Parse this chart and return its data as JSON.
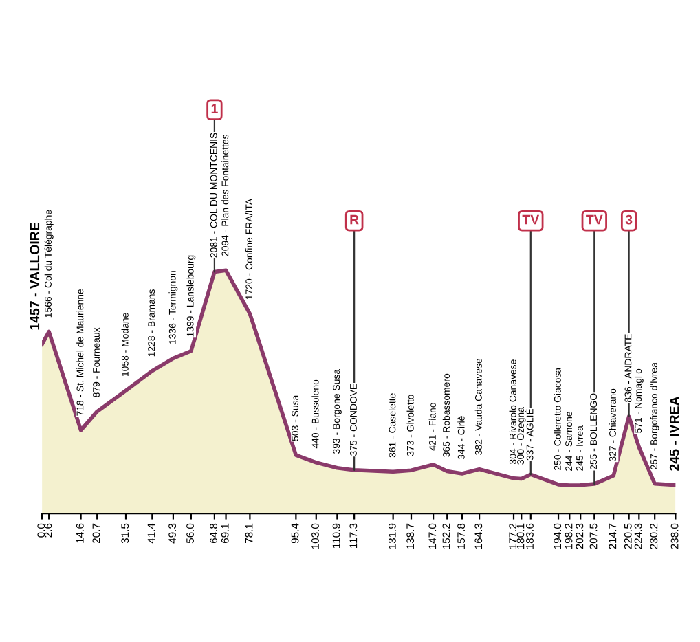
{
  "chart_data": {
    "type": "area",
    "color": "#8a3a6a",
    "x": [
      0.0,
      2.6,
      14.6,
      20.7,
      31.5,
      41.4,
      49.3,
      56.0,
      64.8,
      69.1,
      78.1,
      95.4,
      103.0,
      110.9,
      117.3,
      131.9,
      138.7,
      147.0,
      152.2,
      157.8,
      164.3,
      177.2,
      180.1,
      183.6,
      194.0,
      198.2,
      202.3,
      207.5,
      214.7,
      220.5,
      224.3,
      230.2,
      238.0
    ],
    "values": [
      1457,
      1566,
      718,
      879,
      1058,
      1228,
      1336,
      1399,
      2081,
      2094,
      1720,
      503,
      440,
      393,
      375,
      361,
      373,
      421,
      365,
      344,
      382,
      304,
      300,
      337,
      250,
      244,
      245,
      255,
      327,
      836,
      571,
      257,
      245
    ],
    "value_labels": [
      "1457 - VALLOIRE",
      "1566 - Col du Télégraphe",
      "718 - St. Michel de Maurienne",
      "879 - Fourneaux",
      "1058 - Modane",
      "1228 - Bramans",
      "1336 - Termignon",
      "1399 - Lanslebourg",
      "2081 - COL DU MONTCENIS",
      "2094 - Plan des Fontainettes",
      "1720 - Confine FRA/ITA",
      "503 - Susa",
      "440 - Bussoleno",
      "393 - Borgone Susa",
      "375 - CONDOVE",
      "361 - Caselette",
      "373 - Givoletto",
      "421 - Fiano",
      "365 - Robassomero",
      "344 - Ciriè",
      "382 - Vauda Canavese",
      "304 - Rivarolo Canavese",
      "300 - Ozegna",
      "337 - AGLIÈ",
      "250 - Colleretto Giacosa",
      "244 - Samone",
      "245 - Ivrea",
      "255 - BOLLENGO",
      "327 - Chiaverano",
      "836 - ANDRATE",
      "571 - Nomaglio",
      "257 - Borgofranco d'Ivrea",
      "245 - IVREA"
    ],
    "xlim": [
      0,
      238
    ],
    "xticks": [
      {
        "value": 0,
        "label": "0.0"
      },
      2.6,
      14.6,
      20.7,
      31.5,
      41.4,
      49.3,
      {
        "value": 56,
        "label": "56.0"
      },
      64.8,
      69.1,
      78.1,
      95.4,
      {
        "value": 103,
        "label": "103.0"
      },
      110.9,
      117.3,
      131.9,
      138.7,
      {
        "value": 147,
        "label": "147.0"
      },
      152.2,
      157.8,
      164.3,
      177.2,
      180.1,
      183.6,
      {
        "value": 194,
        "label": "194.0"
      },
      198.2,
      202.3,
      207.5,
      214.7,
      220.5,
      224.3,
      230.2,
      {
        "value": 238,
        "label": "238.0"
      }
    ],
    "tick_labels": "x",
    "annotations": [
      {
        "text": "1",
        "x": 64.8,
        "y": 2081
      },
      {
        "text": "R",
        "x": 117.3,
        "y": 375
      },
      {
        "text": "TV",
        "x": 183.6,
        "y": 337
      },
      {
        "text": "TV",
        "x": 207.5,
        "y": 255
      },
      {
        "text": "3",
        "x": 220.5,
        "y": 836
      }
    ]
  }
}
